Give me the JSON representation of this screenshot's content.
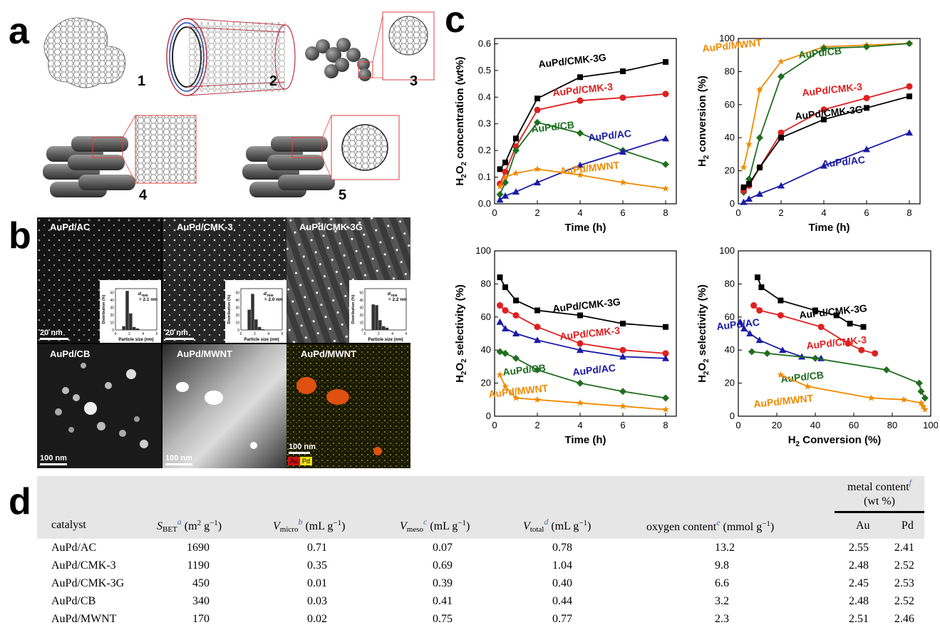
{
  "panel_labels": {
    "a": "a",
    "b": "b",
    "c": "c",
    "d": "d"
  },
  "panel_a": {
    "structure_numbers": [
      "1",
      "2",
      "3",
      "4",
      "5"
    ]
  },
  "panel_b": {
    "images": [
      {
        "label": "AuPd/AC",
        "scale": "20 nm",
        "inset_d": "= 2.1 nm",
        "hist": [
          5,
          52,
          22,
          4,
          2
        ]
      },
      {
        "label": "AuPd/CMK-3",
        "scale": "20 nm",
        "inset_d": "= 2.0 nm",
        "hist": [
          27,
          48,
          14,
          4,
          1
        ]
      },
      {
        "label": "AuPd/CMK-3G",
        "scale": "",
        "inset_d": "= 2.2 nm",
        "hist": [
          34,
          33,
          13,
          5,
          3
        ]
      },
      {
        "label": "AuPd/CB",
        "scale": "100 nm"
      },
      {
        "label": "AuPd/MWNT",
        "scale": "100 nm"
      },
      {
        "label": "AuPd/MWNT",
        "scale": "100 nm",
        "legend": [
          "Au",
          "Pd"
        ]
      }
    ],
    "inset_axis": {
      "xlabel": "Particle size (nm)",
      "ylabel": "Distribution (%)",
      "d_symbol": "d",
      "d_sub": "TEM",
      "yticks": [
        "0",
        "10",
        "20",
        "30",
        "40",
        "50"
      ],
      "xticks": [
        "0",
        "2",
        "4",
        "6"
      ]
    }
  },
  "chart_data": [
    {
      "type": "line",
      "xlabel": "Time (h)",
      "ylabel_parts": [
        "H",
        "2",
        "O",
        "2",
        " concentration (wt%)"
      ],
      "xlim": [
        0,
        8.5
      ],
      "ylim": [
        0,
        0.62
      ],
      "xticks": [
        0,
        2,
        4,
        6,
        8
      ],
      "yticks": [
        0.0,
        0.1,
        0.2,
        0.3,
        0.4,
        0.5,
        0.6
      ],
      "series": [
        {
          "name": "AuPd/CMK-3G",
          "color": "#000000",
          "marker": "square",
          "x": [
            0.25,
            0.5,
            1,
            2,
            4,
            6,
            8
          ],
          "y": [
            0.13,
            0.155,
            0.245,
            0.395,
            0.475,
            0.497,
            0.532
          ]
        },
        {
          "name": "AuPd/CMK-3",
          "color": "#e02020",
          "marker": "circle",
          "x": [
            0.25,
            0.5,
            1,
            2,
            4,
            6,
            8
          ],
          "y": [
            0.075,
            0.12,
            0.215,
            0.352,
            0.387,
            0.398,
            0.412
          ]
        },
        {
          "name": "AuPd/CB",
          "color": "#1f6e1f",
          "marker": "diamond",
          "x": [
            0.25,
            0.5,
            1,
            2,
            4,
            6,
            8
          ],
          "y": [
            0.035,
            0.08,
            0.2,
            0.305,
            0.265,
            0.2,
            0.148
          ]
        },
        {
          "name": "AuPd/AC",
          "color": "#1a1aa8",
          "marker": "triangle",
          "x": [
            0.25,
            0.5,
            1,
            2,
            4,
            6,
            8
          ],
          "y": [
            0.015,
            0.03,
            0.045,
            0.08,
            0.145,
            0.195,
            0.245
          ]
        },
        {
          "name": "AuPd/MWNT",
          "color": "#f08a00",
          "marker": "star",
          "x": [
            0.25,
            0.5,
            1,
            2,
            4,
            6,
            8
          ],
          "y": [
            0.065,
            0.1,
            0.115,
            0.13,
            0.108,
            0.08,
            0.057
          ]
        }
      ]
    },
    {
      "type": "line",
      "xlabel": "Time (h)",
      "ylabel_parts": [
        "H",
        "2",
        "",
        "",
        " conversion (%)"
      ],
      "xlim": [
        0,
        8.5
      ],
      "ylim": [
        0,
        100
      ],
      "xticks": [
        0,
        2,
        4,
        6,
        8
      ],
      "yticks": [
        0,
        20,
        40,
        60,
        80,
        100
      ],
      "series": [
        {
          "name": "AuPd/MWNT",
          "color": "#f08a00",
          "marker": "star",
          "x": [
            0.25,
            0.5,
            1,
            2,
            4,
            6,
            8
          ],
          "y": [
            22,
            36,
            69,
            86,
            95,
            96,
            97
          ]
        },
        {
          "name": "AuPd/CB",
          "color": "#1f6e1f",
          "marker": "diamond",
          "x": [
            0.25,
            0.5,
            1,
            2,
            4,
            6,
            8
          ],
          "y": [
            7,
            15,
            40,
            77,
            94,
            95,
            97
          ]
        },
        {
          "name": "AuPd/CMK-3",
          "color": "#e02020",
          "marker": "circle",
          "x": [
            0.25,
            0.5,
            1,
            2,
            4,
            6,
            8
          ],
          "y": [
            8,
            11,
            22,
            43,
            57,
            64,
            71
          ]
        },
        {
          "name": "AuPd/CMK-3G",
          "color": "#000000",
          "marker": "square",
          "x": [
            0.25,
            0.5,
            1,
            2,
            4,
            6,
            8
          ],
          "y": [
            10,
            12,
            22,
            40,
            51,
            58,
            65
          ]
        },
        {
          "name": "AuPd/AC",
          "color": "#1a1aa8",
          "marker": "triangle",
          "x": [
            0.25,
            0.5,
            1,
            2,
            4,
            6,
            8
          ],
          "y": [
            1,
            3,
            6,
            11,
            23,
            33,
            43
          ]
        }
      ]
    },
    {
      "type": "line",
      "xlabel": "Time (h)",
      "ylabel_parts": [
        "H",
        "2",
        "O",
        "2",
        " selectivity (%)"
      ],
      "xlim": [
        0,
        8.5
      ],
      "ylim": [
        0,
        100
      ],
      "xticks": [
        0,
        2,
        4,
        6,
        8
      ],
      "yticks": [
        0,
        20,
        40,
        60,
        80,
        100
      ],
      "series": [
        {
          "name": "AuPd/CMK-3G",
          "color": "#000000",
          "marker": "square",
          "x": [
            0.25,
            0.5,
            1,
            2,
            4,
            6,
            8
          ],
          "y": [
            84,
            78,
            70,
            64,
            61,
            56,
            54
          ]
        },
        {
          "name": "AuPd/CMK-3",
          "color": "#e02020",
          "marker": "circle",
          "x": [
            0.25,
            0.5,
            1,
            2,
            4,
            6,
            8
          ],
          "y": [
            67,
            64,
            61,
            54,
            44,
            40,
            38
          ]
        },
        {
          "name": "AuPd/AC",
          "color": "#1a1aa8",
          "marker": "triangle",
          "x": [
            0.25,
            0.5,
            1,
            2,
            4,
            6,
            8
          ],
          "y": [
            57,
            53,
            50,
            46,
            40,
            36,
            35
          ]
        },
        {
          "name": "AuPd/CB",
          "color": "#1f6e1f",
          "marker": "diamond",
          "x": [
            0.25,
            0.5,
            1,
            2,
            4,
            6,
            8
          ],
          "y": [
            39,
            38,
            35,
            28,
            20,
            15,
            11
          ]
        },
        {
          "name": "AuPd/MWNT",
          "color": "#f08a00",
          "marker": "star",
          "x": [
            0.25,
            0.5,
            1,
            2,
            4,
            6,
            8
          ],
          "y": [
            25,
            18,
            11,
            10,
            8,
            6,
            4
          ]
        }
      ]
    },
    {
      "type": "line",
      "xlabel_parts": [
        "H",
        "2",
        " Conversion (%)"
      ],
      "ylabel_parts": [
        "H",
        "2",
        "O",
        "2",
        " selectivity (%)"
      ],
      "xlim": [
        0,
        100
      ],
      "ylim": [
        0,
        100
      ],
      "xticks": [
        0,
        20,
        40,
        60,
        80,
        100
      ],
      "yticks": [
        0,
        20,
        40,
        60,
        80,
        100
      ],
      "series": [
        {
          "name": "AuPd/CMK-3G",
          "color": "#000000",
          "marker": "square",
          "x": [
            10,
            12,
            22,
            40,
            51,
            58,
            65
          ],
          "y": [
            84,
            78,
            70,
            64,
            61,
            56,
            54
          ]
        },
        {
          "name": "AuPd/CMK-3",
          "color": "#e02020",
          "marker": "circle",
          "x": [
            8,
            11,
            22,
            43,
            57,
            64,
            71
          ],
          "y": [
            67,
            64,
            61,
            54,
            44,
            40,
            38
          ]
        },
        {
          "name": "AuPd/AC",
          "color": "#1a1aa8",
          "marker": "triangle",
          "x": [
            1,
            3,
            6,
            11,
            23,
            33,
            43
          ],
          "y": [
            57,
            53,
            50,
            46,
            40,
            36,
            35
          ]
        },
        {
          "name": "AuPd/CB",
          "color": "#1f6e1f",
          "marker": "diamond",
          "x": [
            7,
            15,
            40,
            77,
            94,
            95,
            97
          ],
          "y": [
            39,
            38,
            35,
            28,
            20,
            15,
            11
          ]
        },
        {
          "name": "AuPd/MWNT",
          "color": "#f08a00",
          "marker": "star",
          "x": [
            22,
            36,
            69,
            86,
            95,
            96,
            97
          ],
          "y": [
            25,
            18,
            11,
            10,
            8,
            6,
            4
          ]
        }
      ]
    }
  ],
  "table": {
    "header_group": "metal content",
    "header_group_unit": "(wt %)",
    "header_group_foot": "f",
    "columns": {
      "catalyst": "catalyst",
      "sbet_sym": "S",
      "sbet_sub": "BET",
      "sbet_foot": "a",
      "sbet_unit": "(m",
      "vmicro_sym": "V",
      "vmicro_sub": "micro",
      "vmicro_foot": "b",
      "vmeso_sym": "V",
      "vmeso_sub": "meso",
      "vmeso_foot": "c",
      "vtotal_sym": "V",
      "vtotal_sub": "total",
      "vtotal_foot": "d",
      "vol_unit": "(mL g",
      "oxygen": "oxygen content",
      "oxygen_foot": "e",
      "oxygen_unit": "(mmol g",
      "au": "Au",
      "pd": "Pd"
    },
    "rows": [
      [
        "AuPd/AC",
        "1690",
        "0.71",
        "0.07",
        "0.78",
        "13.2",
        "2.55",
        "2.41"
      ],
      [
        "AuPd/CMK-3",
        "1190",
        "0.35",
        "0.69",
        "1.04",
        "9.8",
        "2.48",
        "2.52"
      ],
      [
        "AuPd/CMK-3G",
        "450",
        "0.01",
        "0.39",
        "0.40",
        "6.6",
        "2.45",
        "2.53"
      ],
      [
        "AuPd/CB",
        "340",
        "0.03",
        "0.41",
        "0.44",
        "3.2",
        "2.48",
        "2.52"
      ],
      [
        "AuPd/MWNT",
        "170",
        "0.02",
        "0.75",
        "0.77",
        "2.3",
        "2.51",
        "2.46"
      ]
    ]
  }
}
